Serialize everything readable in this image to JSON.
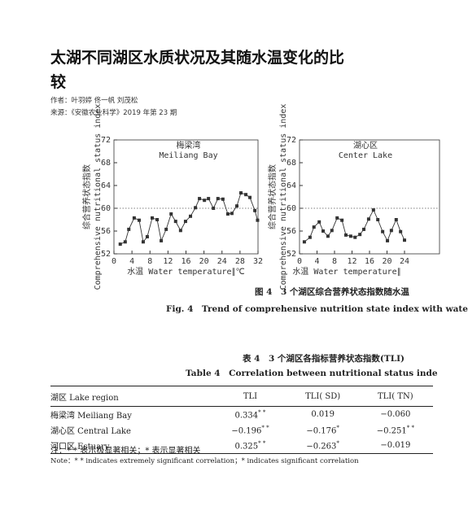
{
  "header": {
    "title": "太湖不同湖区水质状况及其随水温变化的比较",
    "authors": "作者：叶羽婷 佟一帆 刘茂松",
    "source": "来源：《安徽农业科学》2019 年第 23 期"
  },
  "chart_data": [
    {
      "type": "line",
      "title": "梅梁湾",
      "subtitle": "Meiliang Bay",
      "y_label_cn": "综合营养状态指数",
      "y_label_en": "Comprehensive nutritional status index",
      "x_label": "水温 Water temperature∥℃",
      "x": [
        1.4,
        2.5,
        3.3,
        4.5,
        5.6,
        6.5,
        7.4,
        8.5,
        9.6,
        10.5,
        11.6,
        12.7,
        13.7,
        14.8,
        15.9,
        17,
        18.1,
        19,
        20.1,
        21,
        22.1,
        23.1,
        24.2,
        25.3,
        26.2,
        27.3,
        28.2,
        29.3,
        30.2,
        31.3,
        31.9
      ],
      "series": [
        {
          "color": "#333333",
          "values": [
            53.7,
            54.1,
            56.3,
            58.3,
            57.9,
            54.1,
            55,
            58.3,
            58,
            54.3,
            56.3,
            59,
            57.7,
            56.1,
            57.7,
            58.6,
            60.1,
            61.7,
            61.4,
            61.7,
            60,
            61.7,
            61.6,
            59,
            59.1,
            60.4,
            62.7,
            62.4,
            61.9,
            59.6,
            57.9
          ]
        }
      ],
      "xlim": [
        0,
        32
      ],
      "ylim": [
        52,
        72
      ],
      "xticks": [
        0,
        4,
        8,
        12,
        16,
        20,
        24,
        28,
        32
      ],
      "yticks": [
        52,
        56,
        60,
        64,
        68,
        72
      ],
      "reference_line": 60
    },
    {
      "type": "line",
      "title": "湖心区",
      "subtitle": "Center Lake",
      "y_label_cn": "综合营养状态指数",
      "y_label_en": "Comprehensive nutritional status index",
      "x_label": "水温 Water temperature∥",
      "x": [
        1.1,
        2.4,
        3.3,
        4.5,
        5.4,
        6.5,
        7.4,
        8.6,
        9.7,
        10.6,
        11.7,
        12.7,
        13.8,
        14.7,
        15.8,
        16.9,
        17.9,
        19,
        20.1,
        21,
        22.1,
        23.1,
        24
      ],
      "series": [
        {
          "color": "#333333",
          "values": [
            54.1,
            54.9,
            56.7,
            57.6,
            56,
            55.1,
            56.1,
            58.3,
            57.9,
            55.3,
            55.1,
            54.9,
            55.4,
            56.3,
            58.1,
            59.7,
            58,
            55.9,
            54.3,
            56.1,
            58,
            55.9,
            54.4
          ]
        }
      ],
      "xlim": [
        0,
        32
      ],
      "ylim": [
        52,
        72
      ],
      "xticks": [
        0,
        4,
        8,
        12,
        16,
        20,
        24
      ],
      "yticks": [
        52,
        56,
        60,
        64,
        68,
        72
      ],
      "reference_line": 60
    }
  ],
  "figure": {
    "caption_cn": "图 4　3 个湖区综合营养状态指数随水温",
    "caption_en": "Fig. 4　Trend of comprehensive nutrition state index with wate"
  },
  "table": {
    "caption_cn": "表 4　3 个湖区各指标营养状态指数(TLI)",
    "caption_en": "Table 4　Correlation between nutritional status inde",
    "header": [
      "湖区 Lake region",
      "TLI",
      "TLI( SD)",
      "TLI( TN)"
    ],
    "rows": [
      [
        {
          "value": "梅梁湾 Meiliang Bay"
        },
        {
          "value": "0.334",
          "sig": "* *"
        },
        {
          "value": "0.019"
        },
        {
          "value": "−0.060"
        }
      ],
      [
        {
          "value": "湖心区 Central Lake"
        },
        {
          "value": "−0.196",
          "sig": "* *"
        },
        {
          "value": "−0.176",
          "sig": "*"
        },
        {
          "value": "−0.251",
          "sig": "* *"
        }
      ],
      [
        {
          "value": "河口区 Estuary"
        },
        {
          "value": "0.325",
          "sig": "* *"
        },
        {
          "value": "−0.263",
          "sig": "*"
        },
        {
          "value": "−0.019"
        }
      ]
    ],
    "notes": [
      "注：* * 表示极显著相关；* 表示显著相关",
      "Note：* * indicates extremely significant correlation；* indicates significant correlation"
    ]
  }
}
